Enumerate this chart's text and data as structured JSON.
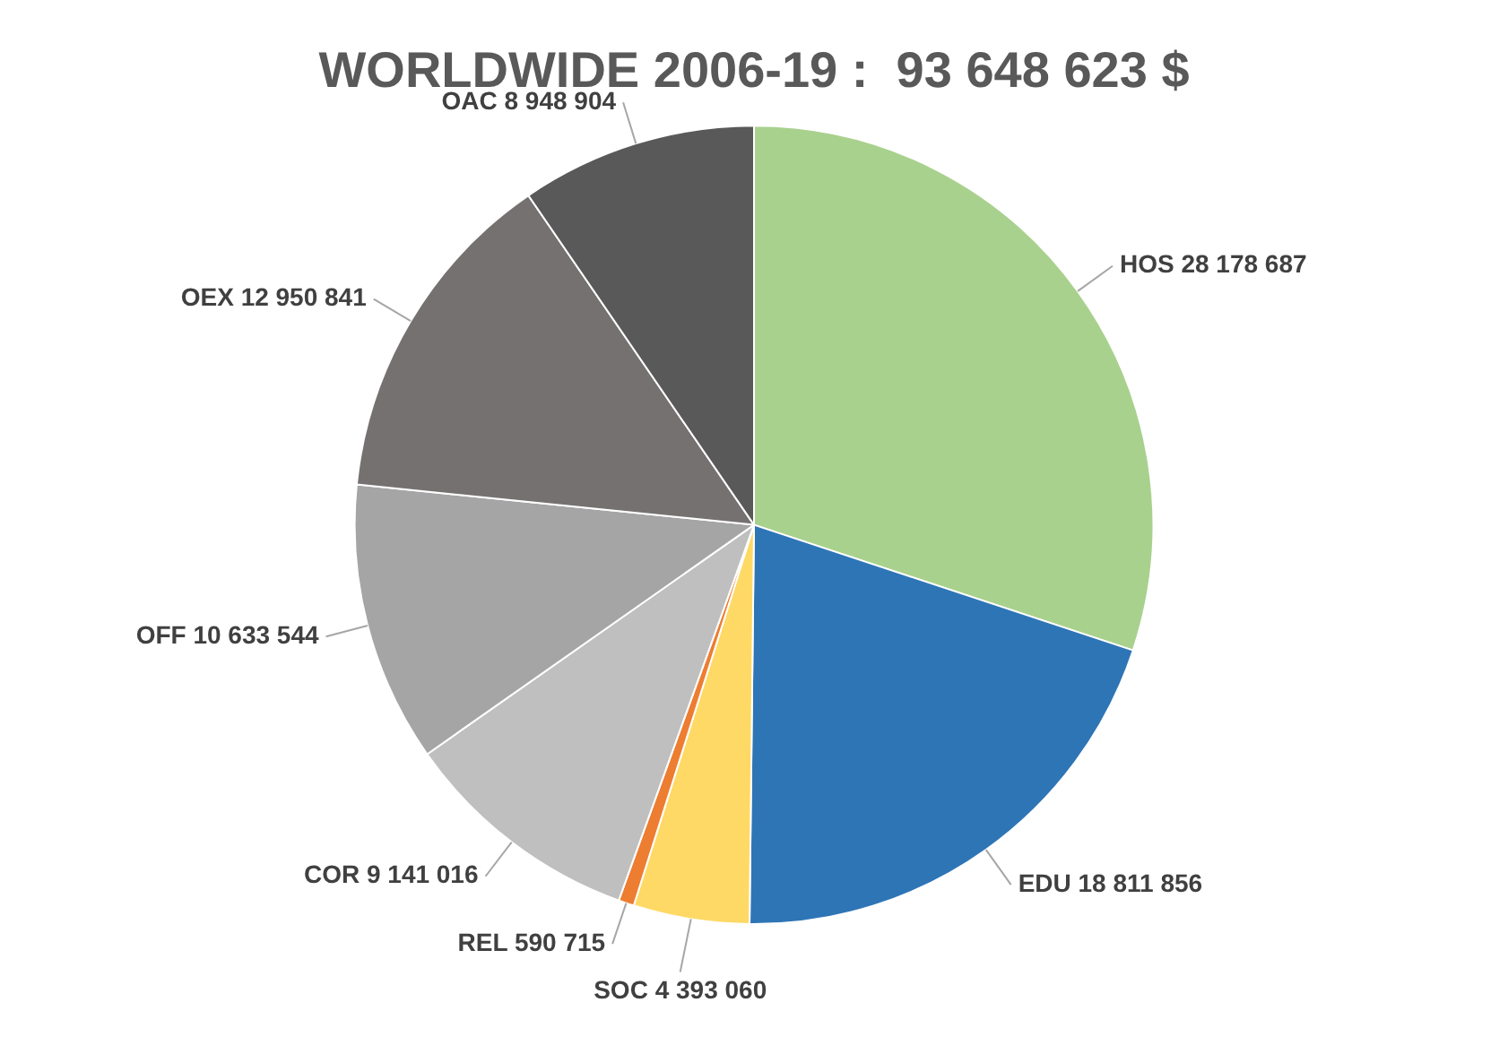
{
  "chart_data": {
    "type": "pie",
    "title": "WORLDWIDE 2006-19 :  93 648 623 $",
    "categories": [
      "HOS",
      "EDU",
      "SOC",
      "REL",
      "COR",
      "OFF",
      "OEX",
      "OAC"
    ],
    "values": [
      28178687,
      18811856,
      4393060,
      590715,
      9141016,
      10633544,
      12950841,
      8948904
    ],
    "value_labels": [
      "28 178 687",
      "18 811 856",
      "4 393 060",
      "590 715",
      "9 141 016",
      "10 633 544",
      "12 950 841",
      "8 948 904"
    ],
    "colors": [
      "#a9d18e",
      "#2e75b6",
      "#ffd966",
      "#ed7d31",
      "#bfbfbf",
      "#a5a5a5",
      "#767171",
      "#595959"
    ],
    "legend": false
  }
}
